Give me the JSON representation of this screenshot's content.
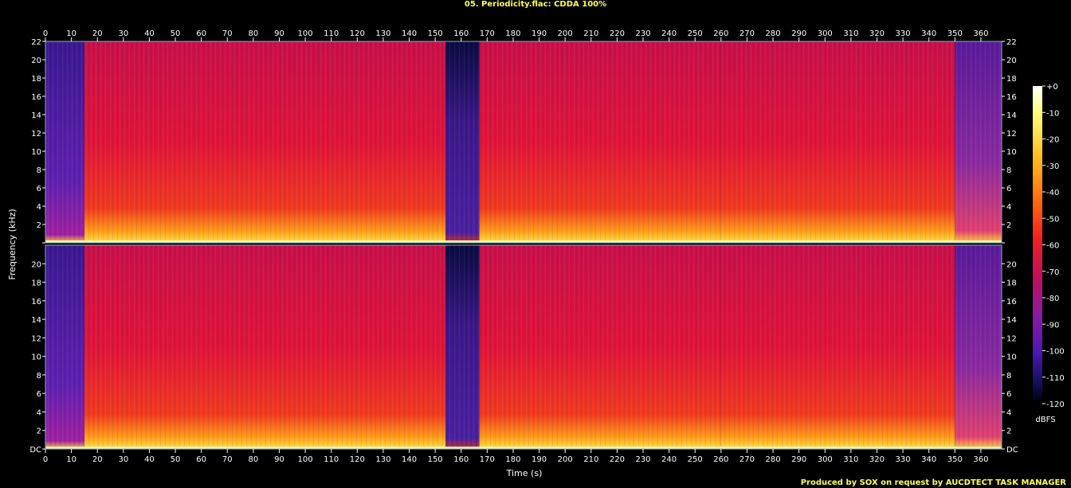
{
  "title": "05. Periodicity.flac: CDDA 100%",
  "footer": "Produced by SOX on request by AUCDTECT TASK MANAGER",
  "chart_data": {
    "type": "heatmap",
    "subtype": "spectrogram",
    "channels": [
      "left",
      "right"
    ],
    "xlabel": "Time (s)",
    "ylabel": "Frequency (kHz)",
    "xlim": [
      0,
      368
    ],
    "ylim": [
      0,
      22
    ],
    "x_ticks": [
      0,
      10,
      20,
      30,
      40,
      50,
      60,
      70,
      80,
      90,
      100,
      110,
      120,
      130,
      140,
      150,
      160,
      170,
      180,
      190,
      200,
      210,
      220,
      230,
      240,
      250,
      260,
      270,
      280,
      290,
      300,
      310,
      320,
      330,
      340,
      350,
      360
    ],
    "y_ticks": [
      "DC",
      "2",
      "4",
      "6",
      "8",
      "10",
      "12",
      "14",
      "16",
      "18",
      "20",
      "22"
    ],
    "colorbar": {
      "label": "dBFS",
      "range": [
        -120,
        0
      ],
      "ticks": [
        "+0",
        "-10",
        "-20",
        "-30",
        "-40",
        "-50",
        "-60",
        "-70",
        "-80",
        "-90",
        "-100",
        "-110",
        "-120"
      ]
    },
    "segments": [
      {
        "start": 0,
        "end": 15,
        "level": "quiet intro (violet/blue, low energy in upper bands)"
      },
      {
        "start": 15,
        "end": 154,
        "level": "loud (red/orange, energy up to 22 kHz)"
      },
      {
        "start": 154,
        "end": 167,
        "level": "near silence / quiet break (dark blue)"
      },
      {
        "start": 167,
        "end": 260,
        "level": "loud (red/orange)"
      },
      {
        "start": 260,
        "end": 350,
        "level": "loud, slightly softer low band"
      },
      {
        "start": 350,
        "end": 368,
        "level": "fade out (purple)"
      }
    ]
  }
}
